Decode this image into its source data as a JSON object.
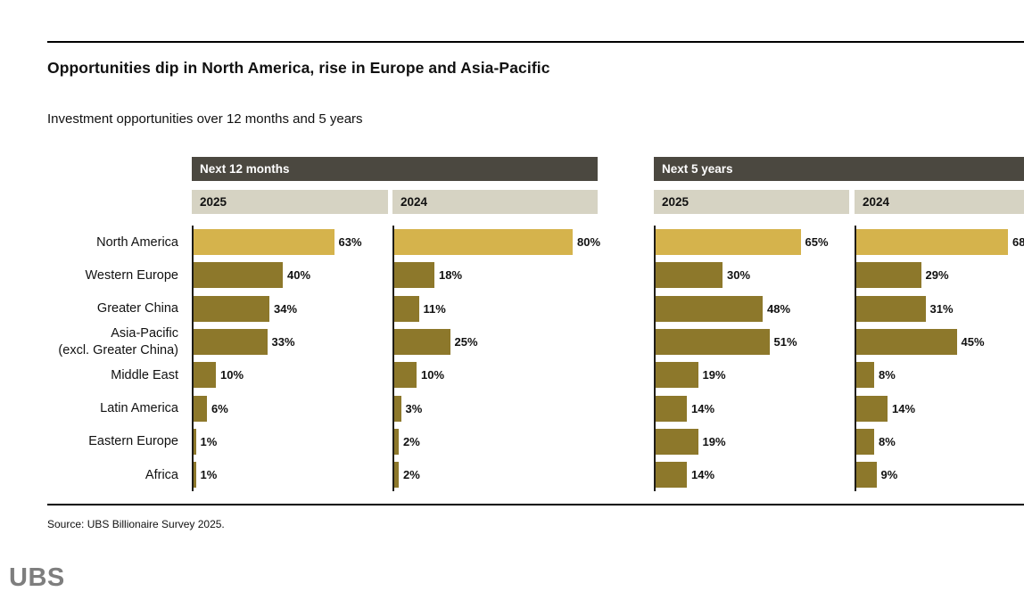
{
  "header": {
    "title": "Opportunities dip in North America, rise in Europe and Asia-Pacific",
    "subtitle": "Investment opportunities over 12 months and 5 years"
  },
  "source": "Source: UBS Billionaire Survey 2025.",
  "logo": "UBS",
  "colors": {
    "group_header_bar": "#4b4840",
    "series_header_bar": "#d6d3c3",
    "bar_highlight": "#d5b34c",
    "bar_default": "#8d782b",
    "axis_line": "#1f1d18",
    "logo_gray": "#7e7e7e"
  },
  "chart_data": {
    "type": "bar",
    "orientation": "horizontal",
    "title": "Opportunities dip in North America, rise in Europe and Asia-Pacific",
    "subtitle": "Investment opportunities over 12 months and 5 years",
    "value_suffix": "%",
    "xlim": [
      0,
      100
    ],
    "grid": false,
    "legend_position": "column-headers-top",
    "highlight_category": "North America",
    "categories": [
      "North America",
      "Western Europe",
      "Greater China",
      "Asia-Pacific\n(excl. Greater China)",
      "Middle East",
      "Latin America",
      "Eastern Europe",
      "Africa"
    ],
    "groups": [
      {
        "label": "Next 12 months",
        "series": [
          {
            "name": "2025",
            "values": [
              63,
              40,
              34,
              33,
              10,
              6,
              1,
              1
            ]
          },
          {
            "name": "2024",
            "values": [
              80,
              18,
              11,
              25,
              10,
              3,
              2,
              2
            ]
          }
        ]
      },
      {
        "label": "Next 5 years",
        "series": [
          {
            "name": "2025",
            "values": [
              65,
              30,
              48,
              51,
              19,
              14,
              19,
              14
            ]
          },
          {
            "name": "2024",
            "values": [
              68,
              29,
              31,
              45,
              8,
              14,
              8,
              9
            ]
          }
        ]
      }
    ]
  }
}
